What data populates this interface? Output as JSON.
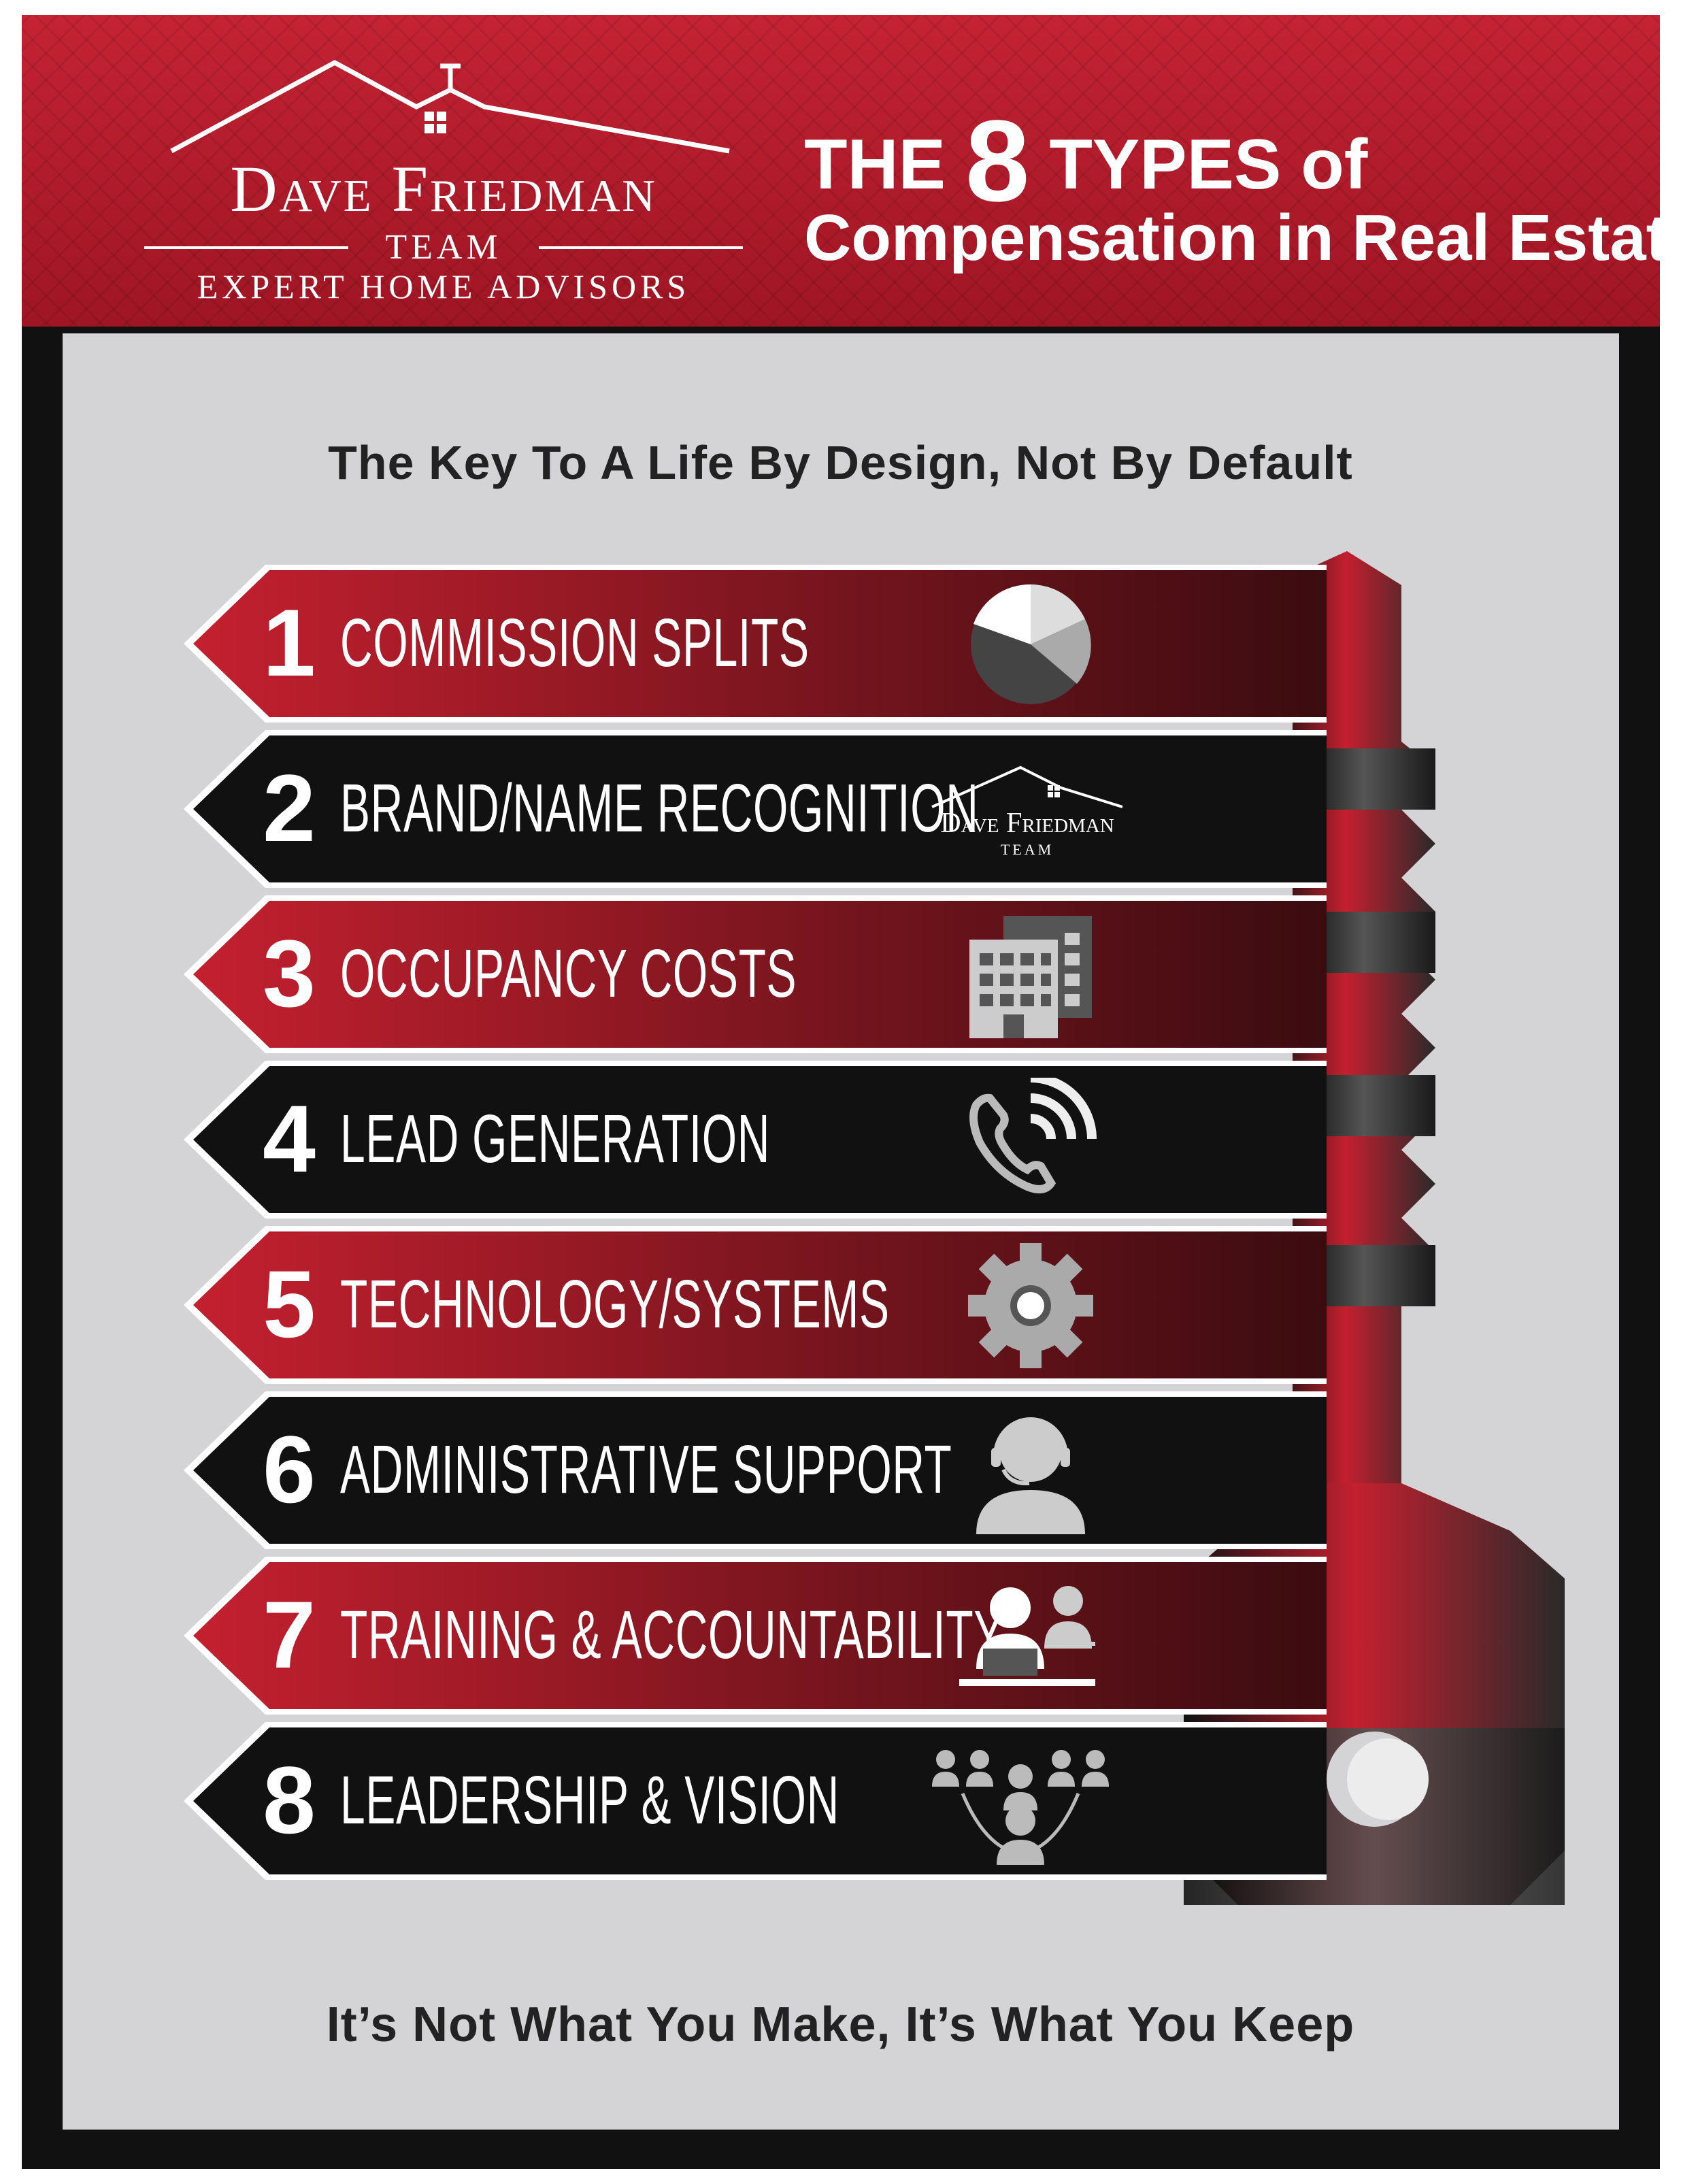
{
  "header": {
    "logo": {
      "name": "Dave Friedman",
      "team": "TEAM",
      "tagline": "EXPERT HOME ADVISORS"
    },
    "title_prefix": "THE",
    "title_number": "8",
    "title_suffix": "TYPES of",
    "title_line2": "Compensation in Real Estate"
  },
  "subtitle": "The Key To A Life By Design, Not By Default",
  "items": [
    {
      "number": "1",
      "label": "COMMISSION SPLITS",
      "icon": "pie-chart-icon",
      "color": "red"
    },
    {
      "number": "2",
      "label": "BRAND/NAME RECOGNITION",
      "icon": "brand-logo-icon",
      "color": "black",
      "logo_name": "Dave Friedman",
      "logo_team": "TEAM"
    },
    {
      "number": "3",
      "label": "OCCUPANCY COSTS",
      "icon": "office-building-icon",
      "color": "red"
    },
    {
      "number": "4",
      "label": "LEAD GENERATION",
      "icon": "phone-ringing-icon",
      "color": "black"
    },
    {
      "number": "5",
      "label": "TECHNOLOGY/SYSTEMS",
      "icon": "gear-icon",
      "color": "red"
    },
    {
      "number": "6",
      "label": "ADMINISTRATIVE SUPPORT",
      "icon": "headset-support-icon",
      "color": "black"
    },
    {
      "number": "7",
      "label": "TRAINING & ACCOUNTABILITY",
      "icon": "training-desk-icon",
      "color": "red"
    },
    {
      "number": "8",
      "label": "LEADERSHIP & VISION",
      "icon": "team-group-icon",
      "color": "black"
    }
  ],
  "footer": "It’s Not What You Make, It’s What You Keep",
  "colors": {
    "brand_red": "#b51c2c",
    "band_red": "#a31827",
    "band_black": "#111111",
    "panel_gray": "#d4d4d6"
  }
}
